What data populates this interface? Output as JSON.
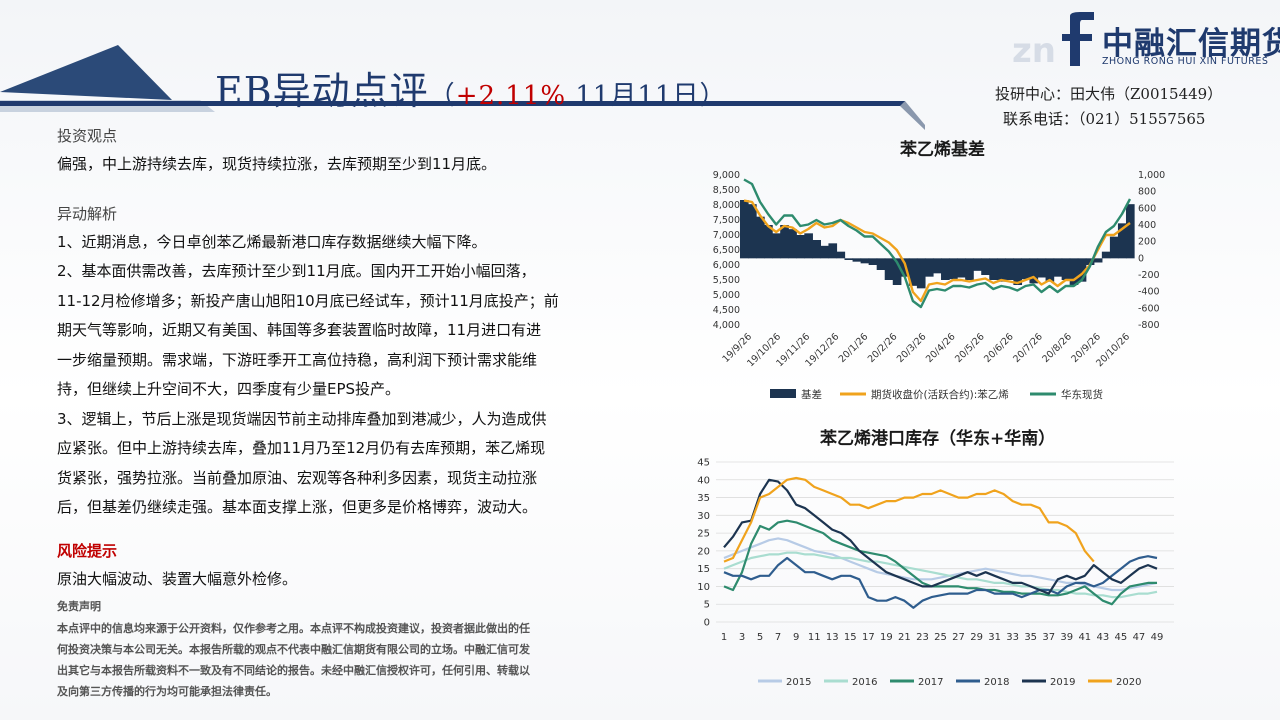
{
  "header": {
    "title": "EB异动点评",
    "subtitle_open": "（",
    "change_pct": "+2.11%",
    "date": " 11月11日",
    "subtitle_close": "）",
    "logo_cn": "中融汇信期货",
    "logo_en": "ZHONG RONG HUI XIN FUTURES",
    "researcher": "投研中心：田大伟（Z0015449）",
    "phone": "联系电话：（021）51557565"
  },
  "left": {
    "view_title": "投资观点",
    "view_text": "偏强，中上游持续去库，现货持续拉涨，去库预期至少到11月底。",
    "analysis_title": "异动解析",
    "analysis_lines": [
      "1、近期消息，今日卓创苯乙烯最新港口库存数据继续大幅下降。",
      "2、基本面供需改善，去库预计至少到11月底。国内开工开始小幅回落，",
      "11-12月检修增多；新投产唐山旭阳10月底已经试车，预计11月底投产；前",
      "期天气等影响，近期又有美国、韩国等多套装置临时故障，11月进口有进",
      "一步缩量预期。需求端，下游旺季开工高位持稳，高利润下预计需求能维",
      "持，但继续上升空间不大，四季度有少量EPS投产。",
      "3、逻辑上，节后上涨是现货端因节前主动排库叠加到港减少，人为造成供",
      "应紧张。但中上游持续去库，叠加11月乃至12月仍有去库预期，苯乙烯现",
      "货紧张，强势拉涨。当前叠加原油、宏观等各种利多因素，现货主动拉涨",
      "后，但基差仍继续走强。基本面支撑上涨，但更多是价格博弈，波动大。"
    ],
    "risk_title": "风险提示",
    "risk_text": "原油大幅波动、装置大幅意外检修。",
    "disclaimer_title": "免责声明",
    "disclaimer_lines": [
      "本点评中的信息均来源于公开资料，仅作参考之用。本点评不构成投资建议，投资者据此做出的任",
      "何投资决策与本公司无关。本报告所载的观点不代表中融汇信期货有限公司的立场。中融汇信可发",
      "出其它与本报告所载资料不一致及有不同结论的报告。未经中融汇信授权许可，任何引用、转载以",
      "及向第三方传播的行为均可能承担法律责任。"
    ]
  },
  "colors": {
    "navy": "#1f3a6e",
    "basis_fill": "#1c3450",
    "futures": "#f0a31d",
    "spot": "#2e8b6e",
    "y2015": "#b7cbe6",
    "y2016": "#a9ddd0",
    "y2017": "#2e8b6e",
    "y2018": "#2f5d8e",
    "y2019": "#1c3450",
    "y2020": "#f0a31d",
    "red": "#c00000"
  },
  "chart_data": [
    {
      "type": "line",
      "title": "苯乙烯基差",
      "x_ticks": [
        "19/9/26",
        "19/10/26",
        "19/11/26",
        "19/12/26",
        "20/1/26",
        "20/2/26",
        "20/3/26",
        "20/4/26",
        "20/5/26",
        "20/6/26",
        "20/7/26",
        "20/8/26",
        "20/9/26",
        "20/10/26"
      ],
      "ylim_left": [
        4000,
        9000
      ],
      "y_ticks_left": [
        "9,000",
        "8,500",
        "8,000",
        "7,500",
        "7,000",
        "6,500",
        "6,000",
        "5,500",
        "5,000",
        "4,500",
        "4,000"
      ],
      "ylim_right": [
        -800,
        1000
      ],
      "y_ticks_right": [
        "1,000",
        "800",
        "600",
        "400",
        "200",
        "0",
        "-200",
        "-400",
        "-600",
        "-800"
      ],
      "legend_position": "bottom",
      "series": [
        {
          "name": "基差",
          "kind": "area",
          "axis": "right",
          "values": [
            700,
            650,
            500,
            400,
            300,
            400,
            350,
            280,
            300,
            220,
            150,
            180,
            80,
            -20,
            -40,
            -60,
            -80,
            -140,
            -260,
            -320,
            -220,
            -330,
            -360,
            -220,
            -180,
            -260,
            -250,
            -230,
            -260,
            -150,
            -200,
            -260,
            -280,
            -260,
            -320,
            -250,
            -300,
            -230,
            -280,
            -220,
            -260,
            -320,
            -280,
            -80,
            -50,
            80,
            260,
            420,
            650
          ]
        },
        {
          "name": "期货收盘价(活跃合约):苯乙烯",
          "kind": "line",
          "axis": "left",
          "values": [
            8150,
            8100,
            7650,
            7300,
            7100,
            7300,
            7250,
            7050,
            7200,
            7400,
            7250,
            7300,
            7500,
            7400,
            7250,
            7100,
            7050,
            6900,
            6750,
            6500,
            6050,
            5100,
            4800,
            5350,
            5400,
            5350,
            5500,
            5500,
            5450,
            5500,
            5550,
            5400,
            5500,
            5450,
            5400,
            5500,
            5600,
            5350,
            5500,
            5300,
            5500,
            5500,
            5700,
            6000,
            6500,
            7000,
            7000,
            7200,
            7400
          ]
        },
        {
          "name": "华东现货",
          "kind": "line",
          "axis": "left",
          "values": [
            8850,
            8700,
            8100,
            7700,
            7350,
            7650,
            7650,
            7300,
            7350,
            7500,
            7350,
            7400,
            7500,
            7300,
            7150,
            6950,
            6950,
            6700,
            6450,
            6100,
            5600,
            4800,
            4600,
            5150,
            5200,
            5150,
            5300,
            5300,
            5250,
            5350,
            5400,
            5200,
            5300,
            5250,
            5150,
            5300,
            5350,
            5100,
            5300,
            5100,
            5300,
            5300,
            5500,
            5950,
            6600,
            7100,
            7300,
            7700,
            8200
          ]
        }
      ]
    },
    {
      "type": "line",
      "title": "苯乙烯港口库存（华东+华南）",
      "x_ticks": [
        "1",
        "3",
        "5",
        "7",
        "9",
        "11",
        "13",
        "15",
        "17",
        "19",
        "21",
        "23",
        "25",
        "27",
        "29",
        "31",
        "33",
        "35",
        "37",
        "39",
        "41",
        "43",
        "45",
        "47",
        "49"
      ],
      "ylim": [
        0,
        45
      ],
      "y_ticks": [
        "45",
        "40",
        "35",
        "30",
        "25",
        "20",
        "15",
        "10",
        "5",
        "0"
      ],
      "legend_position": "bottom",
      "series": [
        {
          "name": "2015",
          "values": [
            18,
            19,
            20,
            21,
            22,
            23,
            23.5,
            23,
            22,
            21,
            20,
            19.5,
            19,
            18,
            17,
            16,
            15,
            14,
            13.5,
            13,
            12.5,
            12,
            12,
            12,
            12.5,
            13,
            13.5,
            14,
            14.5,
            15,
            14.5,
            14,
            13.5,
            13,
            13,
            12.5,
            12,
            11.5,
            11,
            11,
            10.5,
            10,
            9.5,
            9,
            9,
            9.5,
            10,
            10.5,
            11
          ]
        },
        {
          "name": "2016",
          "values": [
            15,
            16,
            17,
            18,
            18.5,
            19,
            19,
            19.5,
            19.5,
            19,
            19,
            18.5,
            18,
            18,
            18,
            17.5,
            17,
            17,
            16.5,
            16,
            15.5,
            15,
            14.5,
            14,
            13.5,
            13,
            12.5,
            12,
            12,
            11.5,
            11,
            11,
            10.5,
            10,
            10,
            9.5,
            9,
            9,
            8.5,
            8,
            8,
            7.5,
            7.5,
            7,
            7,
            7.5,
            8,
            8,
            8.5
          ]
        },
        {
          "name": "2017",
          "values": [
            10,
            9,
            14,
            22,
            27,
            26,
            28,
            28.5,
            28,
            27,
            26,
            25,
            23,
            22,
            21,
            20,
            19.5,
            19,
            18.5,
            17,
            15,
            13,
            11,
            10,
            10,
            10,
            10,
            9.5,
            9.5,
            9,
            9,
            8.5,
            8.5,
            8,
            8,
            8,
            7.5,
            7.5,
            8,
            9,
            10,
            8,
            6,
            5,
            8,
            10,
            10.5,
            11,
            11
          ]
        },
        {
          "name": "2018",
          "values": [
            14,
            13,
            13,
            12,
            13,
            13,
            16,
            18,
            16,
            14,
            14,
            13,
            12,
            13,
            13,
            12,
            7,
            6,
            6,
            7,
            6,
            4,
            6,
            7,
            7.5,
            8,
            8,
            8,
            9,
            9,
            8,
            8,
            8,
            7,
            8,
            9,
            9,
            8,
            10,
            11,
            11,
            10,
            11,
            13,
            15,
            17,
            18,
            18.5,
            18
          ]
        },
        {
          "name": "2019",
          "values": [
            21,
            24,
            28,
            28.5,
            36,
            40,
            39.5,
            37,
            33,
            32,
            30,
            28,
            26,
            25,
            23,
            20,
            18,
            16,
            14,
            13,
            12,
            11,
            10,
            10,
            11,
            12,
            13,
            14,
            13,
            14,
            13,
            12,
            11,
            11,
            10,
            9,
            8,
            12,
            13,
            12,
            13,
            16,
            14,
            12,
            11,
            13,
            15,
            16,
            15
          ]
        },
        {
          "name": "2020",
          "values": [
            17,
            18,
            23,
            28,
            35,
            36,
            38,
            40,
            40.5,
            40,
            38,
            37,
            36,
            35,
            33,
            33,
            32,
            33,
            34,
            34,
            35,
            35,
            36,
            36,
            37,
            36,
            35,
            35,
            36,
            36,
            37,
            36,
            34,
            33,
            33,
            32,
            28,
            28,
            27,
            25,
            20,
            17
          ]
        }
      ]
    }
  ]
}
